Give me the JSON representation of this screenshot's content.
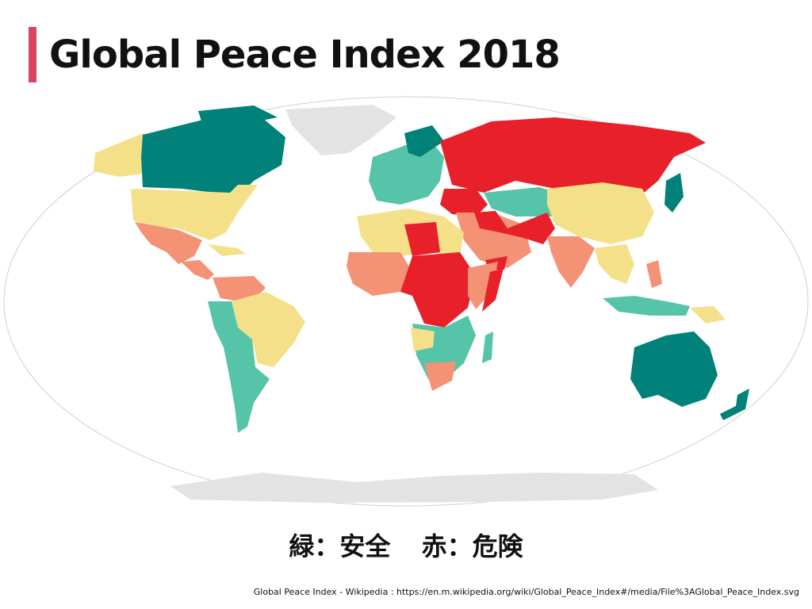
{
  "title": "Global Peace Index 2018",
  "legend": {
    "green": "緑：安全",
    "red": "赤：危険"
  },
  "source": "Global Peace Index - Wikipedia : https://en.m.wikipedia.org/wiki/Global_Peace_Index#/media/File%3AGlobal_Peace_Index.svg",
  "colors": {
    "very_high_peace": "#00827a",
    "high_peace": "#55c4a8",
    "medium_peace": "#f5e08a",
    "low_peace": "#f49275",
    "very_low_peace": "#e8202a",
    "no_data": "#e3e3e3",
    "accent": "#d94463"
  }
}
